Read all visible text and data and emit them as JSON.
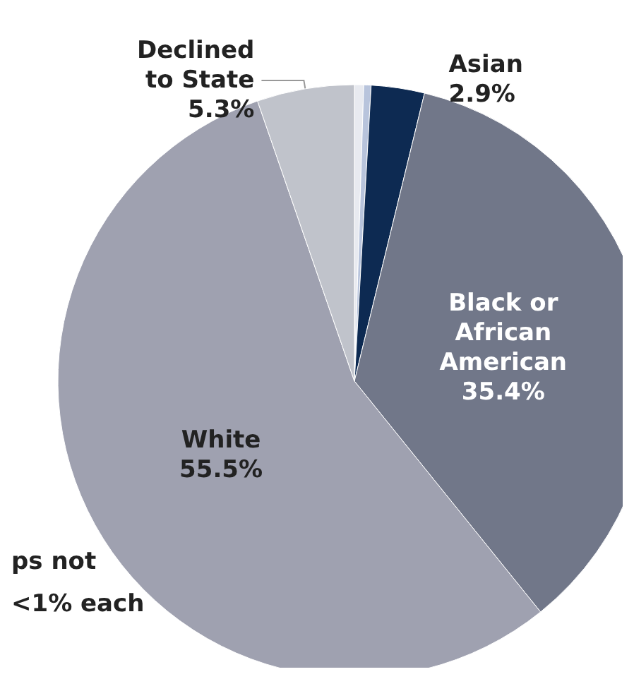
{
  "chart_data": {
    "type": "pie",
    "categories": [
      null,
      null,
      "Asian",
      "Black or African American",
      "White",
      "Declined to State"
    ],
    "values": [
      0.5,
      0.4,
      2.9,
      35.4,
      55.5,
      5.3
    ],
    "value_labels": [
      null,
      null,
      "2.9%",
      "35.4%",
      "55.5%",
      "5.3%"
    ],
    "colors": [
      "#e8eaf0",
      "#b8c4dc",
      "#0d2a52",
      "#717789",
      "#9fa1b0",
      "#c0c3cb"
    ],
    "annotations": [
      "ps not\n<1% each"
    ]
  }
}
